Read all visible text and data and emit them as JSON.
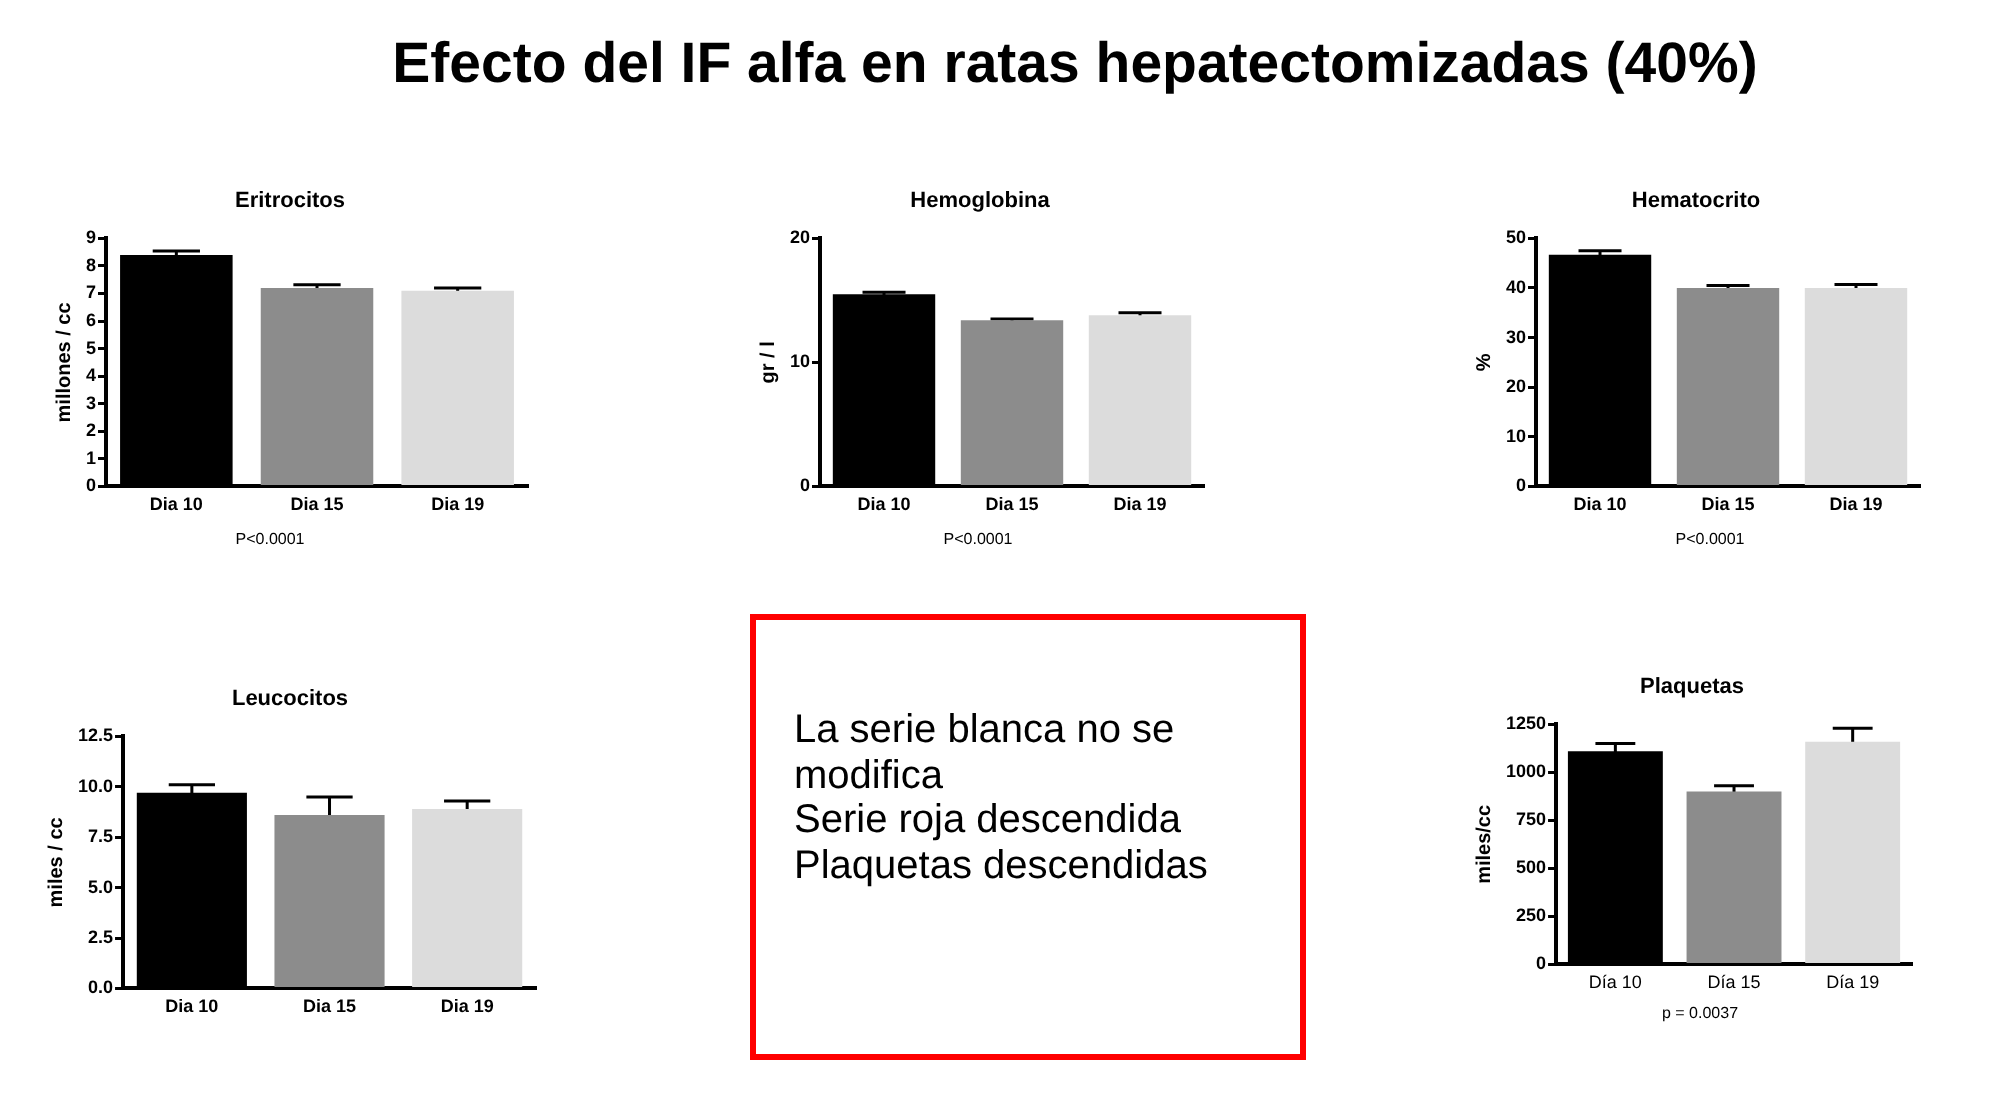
{
  "chart_data": [
    {
      "type": "other",
      "title": "Efecto del IF alfa en ratas hepatectomizadas (40%)"
    },
    {
      "type": "bar",
      "title": "Eritrocitos",
      "ylabel": "millones / cc",
      "categories": [
        "Dia 10",
        "Dia 15",
        "Dia 19"
      ],
      "values": [
        8.4,
        7.2,
        7.1
      ],
      "errors": [
        0.14,
        0.12,
        0.1
      ],
      "colors": [
        "#000000",
        "#8c8c8c",
        "#dcdcdc"
      ],
      "ylim": [
        0,
        9
      ],
      "yticks": [
        0,
        1,
        2,
        3,
        4,
        5,
        6,
        7,
        8,
        9
      ],
      "annotations": [
        "P<0.0001"
      ]
    },
    {
      "type": "bar",
      "title": "Hemoglobina",
      "ylabel": "gr / l",
      "categories": [
        "Dia 10",
        "Dia 15",
        "Dia 19"
      ],
      "values": [
        15.5,
        13.4,
        13.8
      ],
      "errors": [
        0.15,
        0.1,
        0.2
      ],
      "colors": [
        "#000000",
        "#8c8c8c",
        "#dcdcdc"
      ],
      "ylim": [
        0,
        20
      ],
      "yticks": [
        0,
        10,
        20
      ],
      "annotations": [
        "P<0.0001"
      ]
    },
    {
      "type": "bar",
      "title": "Hematocrito",
      "ylabel": "%",
      "categories": [
        "Dia 10",
        "Dia 15",
        "Dia 19"
      ],
      "values": [
        46.7,
        40.0,
        40.0
      ],
      "errors": [
        0.8,
        0.5,
        0.7
      ],
      "colors": [
        "#000000",
        "#8c8c8c",
        "#dcdcdc"
      ],
      "ylim": [
        0,
        50
      ],
      "yticks": [
        0,
        10,
        20,
        30,
        40,
        50
      ],
      "annotations": [
        "P<0.0001"
      ]
    },
    {
      "type": "bar",
      "title": "Leucocitos",
      "ylabel": "miles / cc",
      "categories": [
        "Dia 10",
        "Dia 15",
        "Dia 19"
      ],
      "values": [
        9.7,
        8.6,
        8.9
      ],
      "errors": [
        0.4,
        0.9,
        0.4
      ],
      "colors": [
        "#000000",
        "#8c8c8c",
        "#dcdcdc"
      ],
      "ylim": [
        0,
        12.5
      ],
      "yticks": [
        {
          "value": 0,
          "label": "0.0"
        },
        2.5,
        {
          "value": 5,
          "label": "5.0"
        },
        7.5,
        {
          "value": 10,
          "label": "10.0"
        },
        12.5
      ]
    },
    {
      "type": "other",
      "annotations": [
        "La serie blanca no se modifica",
        "Serie roja descendida",
        "Plaquetas descendidas"
      ]
    },
    {
      "type": "bar",
      "title": "Plaquetas",
      "ylabel": "miles/cc",
      "categories": [
        "Día 10",
        "Día 15",
        "Día 19"
      ],
      "values": [
        1110,
        900,
        1160
      ],
      "errors": [
        40,
        30,
        70
      ],
      "colors": [
        "#000000",
        "#8c8c8c",
        "#dcdcdc"
      ],
      "ylim": [
        0,
        1250
      ],
      "yticks": [
        0,
        250,
        500,
        750,
        1000,
        1250
      ],
      "annotations": [
        "p = 0.0037"
      ]
    }
  ]
}
